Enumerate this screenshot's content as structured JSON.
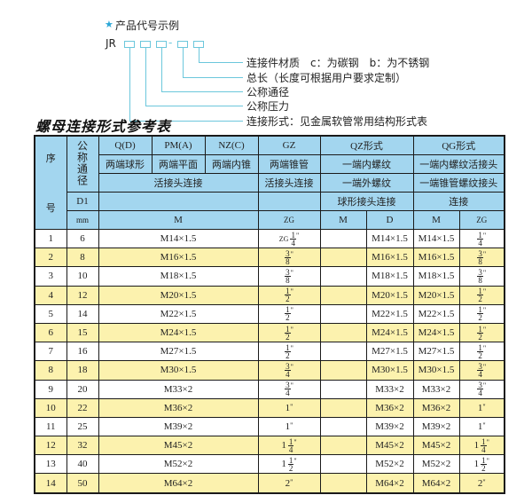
{
  "legend": {
    "star_icon": "star-icon",
    "title": "产品代号示例",
    "prefix": "JR",
    "dash": "-",
    "labels": [
      "连接件材质　c：为碳钢　b：为不锈钢",
      "总长（长度可根据用户要求定制）",
      "公称通径",
      "公称压力",
      "连接形式：见金属软管常用结构形式表"
    ],
    "line_color": "#6cc7dc"
  },
  "table_title": "螺母连接形式参考表",
  "colors": {
    "header_bg": "#a3d6ef",
    "row_alt_bg": "#fcf2ae",
    "border": "#1a1a1a"
  },
  "header": {
    "seq": [
      "序",
      "号"
    ],
    "nominal": "公称通径",
    "d1": "D1",
    "mm": "mm",
    "types": [
      "Q(D)",
      "PM(A)",
      "NZ(C)",
      "GZ",
      "QZ形式",
      "QG形式"
    ],
    "desc1": [
      "两端球形",
      "两端平面",
      "两端内锥",
      "两端锥管",
      "一端内螺纹",
      "一端内螺纹活接头"
    ],
    "desc2": [
      "活接头连接",
      "活接头连接",
      "一端外螺纹",
      "一端锥管螺纹接头"
    ],
    "desc3": [
      "球形接头连接",
      "连接"
    ],
    "units": [
      "M",
      "ZG",
      "M",
      "D",
      "M",
      "ZG"
    ]
  },
  "rows": [
    {
      "no": "1",
      "d1": "6",
      "m": "M14×1.5",
      "zg": {
        "w": "ZG",
        "n": "1",
        "d": "4"
      },
      "qz_m": "",
      "qz_d": "M14×1.5",
      "qg_m": "M14×1.5",
      "qg_zg": {
        "w": "",
        "n": "1",
        "d": "4"
      }
    },
    {
      "no": "2",
      "d1": "8",
      "m": "M16×1.5",
      "zg": {
        "w": "",
        "n": "3",
        "d": "8"
      },
      "qz_m": "",
      "qz_d": "M16×1.5",
      "qg_m": "M16×1.5",
      "qg_zg": {
        "w": "",
        "n": "3",
        "d": "8"
      }
    },
    {
      "no": "3",
      "d1": "10",
      "m": "M18×1.5",
      "zg": {
        "w": "",
        "n": "3",
        "d": "8"
      },
      "qz_m": "",
      "qz_d": "M18×1.5",
      "qg_m": "M18×1.5",
      "qg_zg": {
        "w": "",
        "n": "3",
        "d": "8"
      }
    },
    {
      "no": "4",
      "d1": "12",
      "m": "M20×1.5",
      "zg": {
        "w": "",
        "n": "1",
        "d": "2"
      },
      "qz_m": "",
      "qz_d": "M20×1.5",
      "qg_m": "M20×1.5",
      "qg_zg": {
        "w": "",
        "n": "1",
        "d": "2"
      }
    },
    {
      "no": "5",
      "d1": "14",
      "m": "M22×1.5",
      "zg": {
        "w": "",
        "n": "1",
        "d": "2"
      },
      "qz_m": "",
      "qz_d": "M22×1.5",
      "qg_m": "M22×1.5",
      "qg_zg": {
        "w": "",
        "n": "1",
        "d": "2"
      }
    },
    {
      "no": "6",
      "d1": "15",
      "m": "M24×1.5",
      "zg": {
        "w": "",
        "n": "1",
        "d": "2"
      },
      "qz_m": "",
      "qz_d": "M24×1.5",
      "qg_m": "M24×1.5",
      "qg_zg": {
        "w": "",
        "n": "1",
        "d": "2"
      }
    },
    {
      "no": "7",
      "d1": "16",
      "m": "M27×1.5",
      "zg": {
        "w": "",
        "n": "1",
        "d": "2"
      },
      "qz_m": "",
      "qz_d": "M27×1.5",
      "qg_m": "M27×1.5",
      "qg_zg": {
        "w": "",
        "n": "1",
        "d": "2"
      }
    },
    {
      "no": "8",
      "d1": "18",
      "m": "M30×1.5",
      "zg": {
        "w": "",
        "n": "3",
        "d": "4"
      },
      "qz_m": "",
      "qz_d": "M30×1.5",
      "qg_m": "M30×1.5",
      "qg_zg": {
        "w": "",
        "n": "3",
        "d": "4"
      }
    },
    {
      "no": "9",
      "d1": "20",
      "m": "M33×2",
      "zg": {
        "w": "",
        "n": "3",
        "d": "4"
      },
      "qz_m": "",
      "qz_d": "M33×2",
      "qg_m": "M33×2",
      "qg_zg": {
        "w": "",
        "n": "3",
        "d": "4"
      }
    },
    {
      "no": "10",
      "d1": "22",
      "m": "M36×2",
      "zg": {
        "w": "1",
        "n": "",
        "d": ""
      },
      "qz_m": "",
      "qz_d": "M36×2",
      "qg_m": "M36×2",
      "qg_zg": {
        "w": "1",
        "n": "",
        "d": ""
      }
    },
    {
      "no": "11",
      "d1": "25",
      "m": "M39×2",
      "zg": {
        "w": "1",
        "n": "",
        "d": ""
      },
      "qz_m": "",
      "qz_d": "M39×2",
      "qg_m": "M39×2",
      "qg_zg": {
        "w": "1",
        "n": "",
        "d": ""
      }
    },
    {
      "no": "12",
      "d1": "32",
      "m": "M45×2",
      "zg": {
        "w": "1",
        "n": "1",
        "d": "4"
      },
      "qz_m": "",
      "qz_d": "M45×2",
      "qg_m": "M45×2",
      "qg_zg": {
        "w": "1",
        "n": "1",
        "d": "4"
      }
    },
    {
      "no": "13",
      "d1": "40",
      "m": "M52×2",
      "zg": {
        "w": "1",
        "n": "1",
        "d": "2"
      },
      "qz_m": "",
      "qz_d": "M52×2",
      "qg_m": "M52×2",
      "qg_zg": {
        "w": "1",
        "n": "1",
        "d": "2"
      }
    },
    {
      "no": "14",
      "d1": "50",
      "m": "M64×2",
      "zg": {
        "w": "2",
        "n": "",
        "d": ""
      },
      "qz_m": "",
      "qz_d": "M64×2",
      "qg_m": "M64×2",
      "qg_zg": {
        "w": "2",
        "n": "",
        "d": ""
      }
    }
  ]
}
